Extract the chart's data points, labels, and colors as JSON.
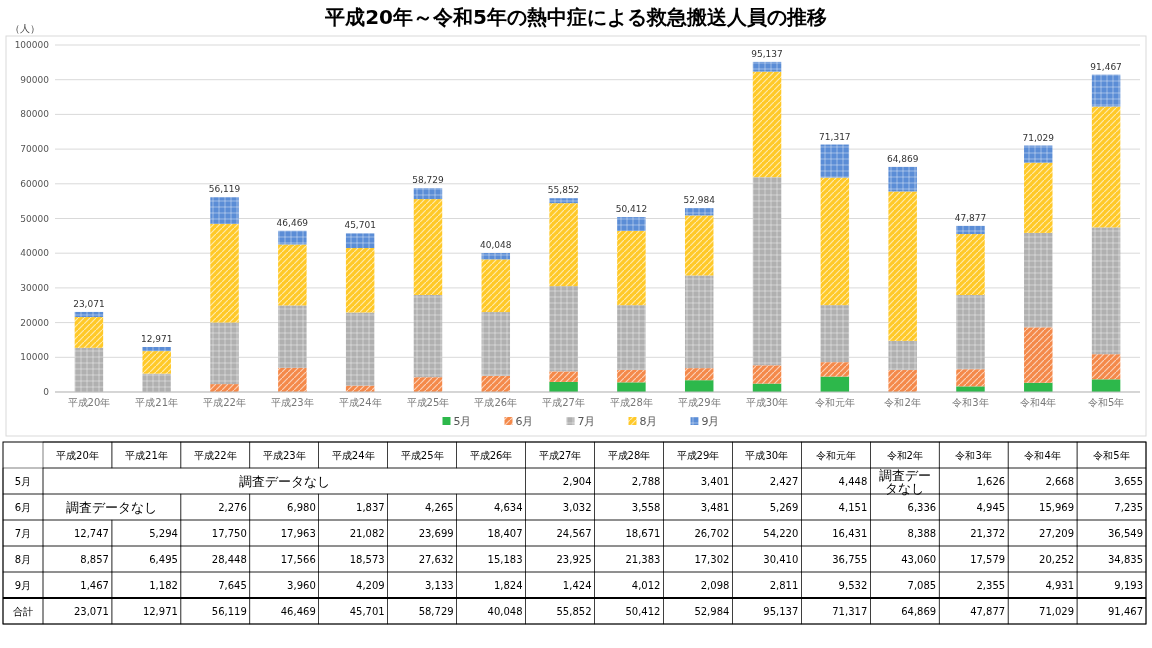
{
  "chart_data": {
    "type": "bar",
    "stacked": true,
    "title": "平成20年～令和5年の熱中症による救急搬送人員の推移",
    "ylabel": "（人）",
    "categories": [
      "平成20年",
      "平成21年",
      "平成22年",
      "平成23年",
      "平成24年",
      "平成25年",
      "平成26年",
      "平成27年",
      "平成28年",
      "平成29年",
      "平成30年",
      "令和元年",
      "令和2年",
      "令和3年",
      "令和4年",
      "令和5年"
    ],
    "series": [
      {
        "name": "5月",
        "color": "#2db84b",
        "values": [
          null,
          null,
          null,
          null,
          null,
          null,
          null,
          2904,
          2788,
          3401,
          2427,
          4448,
          null,
          1626,
          2668,
          3655
        ],
        "value_labels": [
          null,
          null,
          null,
          null,
          null,
          null,
          null,
          "2,904",
          "2,788",
          "3,401",
          "2,427",
          "4,448",
          null,
          "1,626",
          "2,668",
          "3,655"
        ]
      },
      {
        "name": "6月",
        "color": "#f4894a",
        "values": [
          null,
          null,
          2276,
          6980,
          1837,
          4265,
          4634,
          3032,
          3558,
          3481,
          5269,
          4151,
          6336,
          4945,
          15969,
          7235
        ],
        "value_labels": [
          null,
          null,
          "2,276",
          "6,980",
          "1,837",
          "4,265",
          "4,634",
          "3,032",
          "3,558",
          "3,481",
          "5,269",
          "4,151",
          "6,336",
          "4,945",
          "15,969",
          "7,235"
        ]
      },
      {
        "name": "7月",
        "color": "#b0b0b0",
        "values": [
          12747,
          5294,
          17750,
          17963,
          21082,
          23699,
          18407,
          24567,
          18671,
          26702,
          54220,
          16431,
          8388,
          21372,
          27209,
          36549
        ],
        "value_labels": [
          "12,747",
          "5,294",
          "17,750",
          "17,963",
          "21,082",
          "23,699",
          "18,407",
          "24,567",
          "18,671",
          "26,702",
          "54,220",
          "16,431",
          "8,388",
          "21,372",
          "27,209",
          "36,549"
        ]
      },
      {
        "name": "8月",
        "color": "#ffc928",
        "values": [
          8857,
          6495,
          28448,
          17566,
          18573,
          27632,
          15183,
          23925,
          21383,
          17302,
          30410,
          36755,
          43060,
          17579,
          20252,
          34835
        ],
        "value_labels": [
          "8,857",
          "6,495",
          "28,448",
          "17,566",
          "18,573",
          "27,632",
          "15,183",
          "23,925",
          "21,383",
          "17,302",
          "30,410",
          "36,755",
          "43,060",
          "17,579",
          "20,252",
          "34,835"
        ]
      },
      {
        "name": "9月",
        "color": "#5b8dd6",
        "values": [
          1467,
          1182,
          7645,
          3960,
          4209,
          3133,
          1824,
          1424,
          4012,
          2098,
          2811,
          9532,
          7085,
          2355,
          4931,
          9193
        ],
        "value_labels": [
          "1,467",
          "1,182",
          "7,645",
          "3,960",
          "4,209",
          "3,133",
          "1,824",
          "1,424",
          "4,012",
          "2,098",
          "2,811",
          "9,532",
          "7,085",
          "2,355",
          "4,931",
          "9,193"
        ]
      }
    ],
    "totals": [
      "23,071",
      "12,971",
      "56,119",
      "46,469",
      "45,701",
      "58,729",
      "40,048",
      "55,852",
      "50,412",
      "52,984",
      "95,137",
      "71,317",
      "64,869",
      "47,877",
      "71,029",
      "91,467"
    ],
    "ylim": [
      0,
      100000
    ],
    "yticks": [
      0,
      10000,
      20000,
      30000,
      40000,
      50000,
      60000,
      70000,
      80000,
      90000,
      100000
    ],
    "data_labels": true,
    "grid": "y",
    "legend": "bottom",
    "annotations": [
      "合計",
      "調査データなし",
      "調査データなし",
      "調査データなし"
    ]
  }
}
